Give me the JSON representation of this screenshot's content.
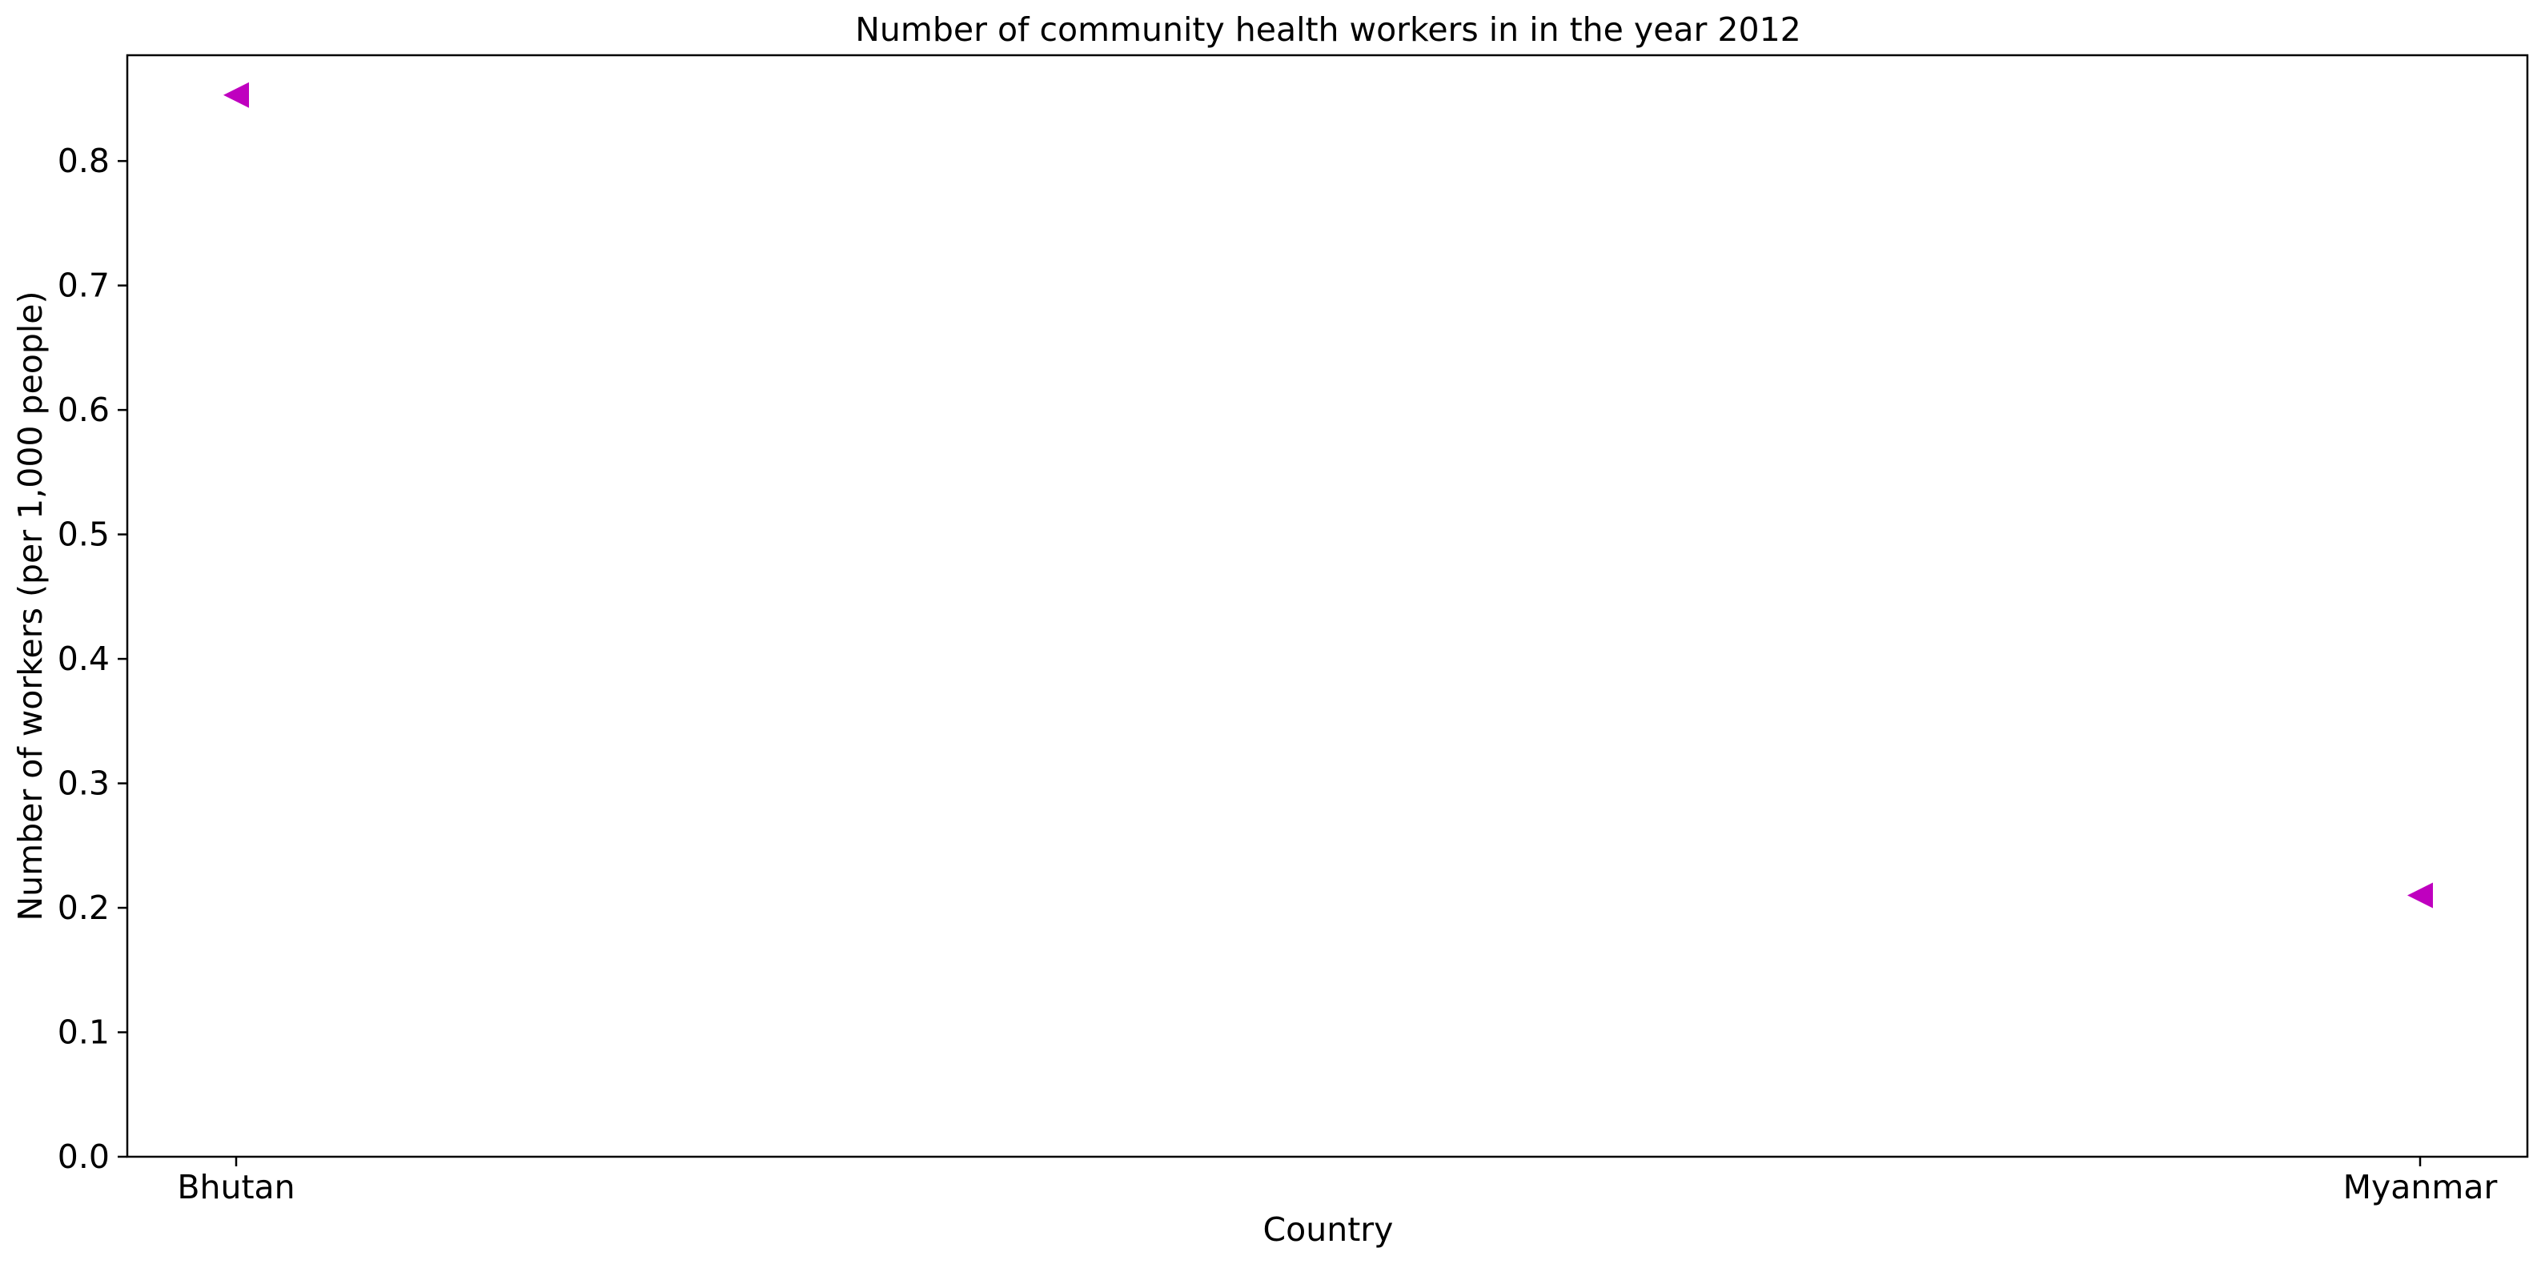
{
  "chart_data": {
    "type": "scatter",
    "title": "Number of community health workers in in the year 2012",
    "xlabel": "Country",
    "ylabel": "Number of workers (per 1,000 people)",
    "categories": [
      "Bhutan",
      "Myanmar"
    ],
    "values": [
      0.853,
      0.21
    ],
    "ylim": [
      0,
      0.885
    ],
    "yticks": [
      0.0,
      0.1,
      0.2,
      0.3,
      0.4,
      0.5,
      0.6,
      0.7,
      0.8
    ],
    "ytick_labels": [
      "0.0",
      "0.1",
      "0.2",
      "0.3",
      "0.4",
      "0.5",
      "0.6",
      "0.7",
      "0.8"
    ],
    "marker": "triangle-left",
    "marker_color": "#bf00bf",
    "grid": false,
    "legend": "none"
  }
}
